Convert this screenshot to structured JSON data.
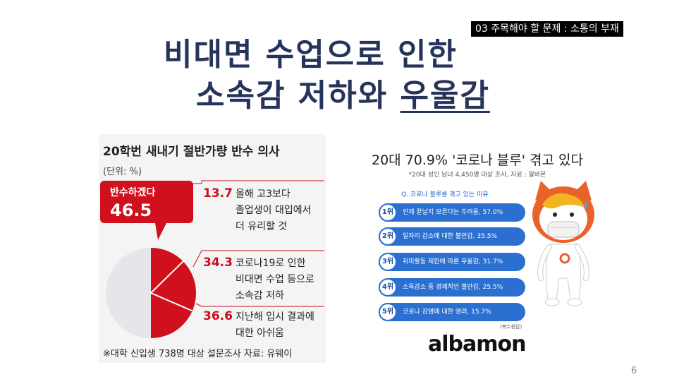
{
  "slide": {
    "section_tag": "03 주목해야 할 문제 : 소통의 부재",
    "title_line1": "비대면 수업으로 인한",
    "title_line2_a": "소속감 저하와 ",
    "title_line2_b": "우울감",
    "page_number": "6"
  },
  "left_panel": {
    "title": "20학번 새내기 절반가량 반수 의사",
    "unit": "(단위: %)",
    "callout_label": "반수하겠다",
    "callout_value": "46.5",
    "items": [
      {
        "value": "13.7",
        "line1": "올해 고3보다",
        "line2": "졸업생이 대입에서",
        "line3": "더 유리할 것"
      },
      {
        "value": "34.3",
        "line1": "코로나19로 인한",
        "line2": "비대면 수업 등으로",
        "line3": "소속감 저하"
      },
      {
        "value": "36.6",
        "line1": "지난해 입시 결과에",
        "line2": "대한 아쉬움"
      }
    ],
    "footer": "※대학 신입생 738명 대상 설문조사    자료: 유웨이",
    "colors": {
      "accent": "#d0101c",
      "pie_gray": "#e6e6ea"
    }
  },
  "right_panel": {
    "title": "20대 70.9% '코로나 블루' 겪고 있다",
    "subtitle": "*20대 성인 남녀 4,450명 대상 조사, 자료 : 알바몬",
    "question": "Q. 코로나 블루를 겪고 있는 이유",
    "ranks": [
      {
        "badge": "1위",
        "text": "언제 끝날지 모른다는 두려움, 57.0%"
      },
      {
        "badge": "2위",
        "text": "일자리 감소에 대한 불안감, 35.5%"
      },
      {
        "badge": "3위",
        "text": "취미활동 제한에 따른 우울감, 31.7%"
      },
      {
        "badge": "4위",
        "text": "소득감소 등 경제적인 불안감, 25.5%"
      },
      {
        "badge": "5위",
        "text": "코로나 감염에 대한 염려, 15.7%"
      }
    ],
    "note": "(복수응답)",
    "logo": "albamon",
    "colors": {
      "bar": "#2b70d0",
      "mascot_orange": "#e8622a"
    }
  }
}
